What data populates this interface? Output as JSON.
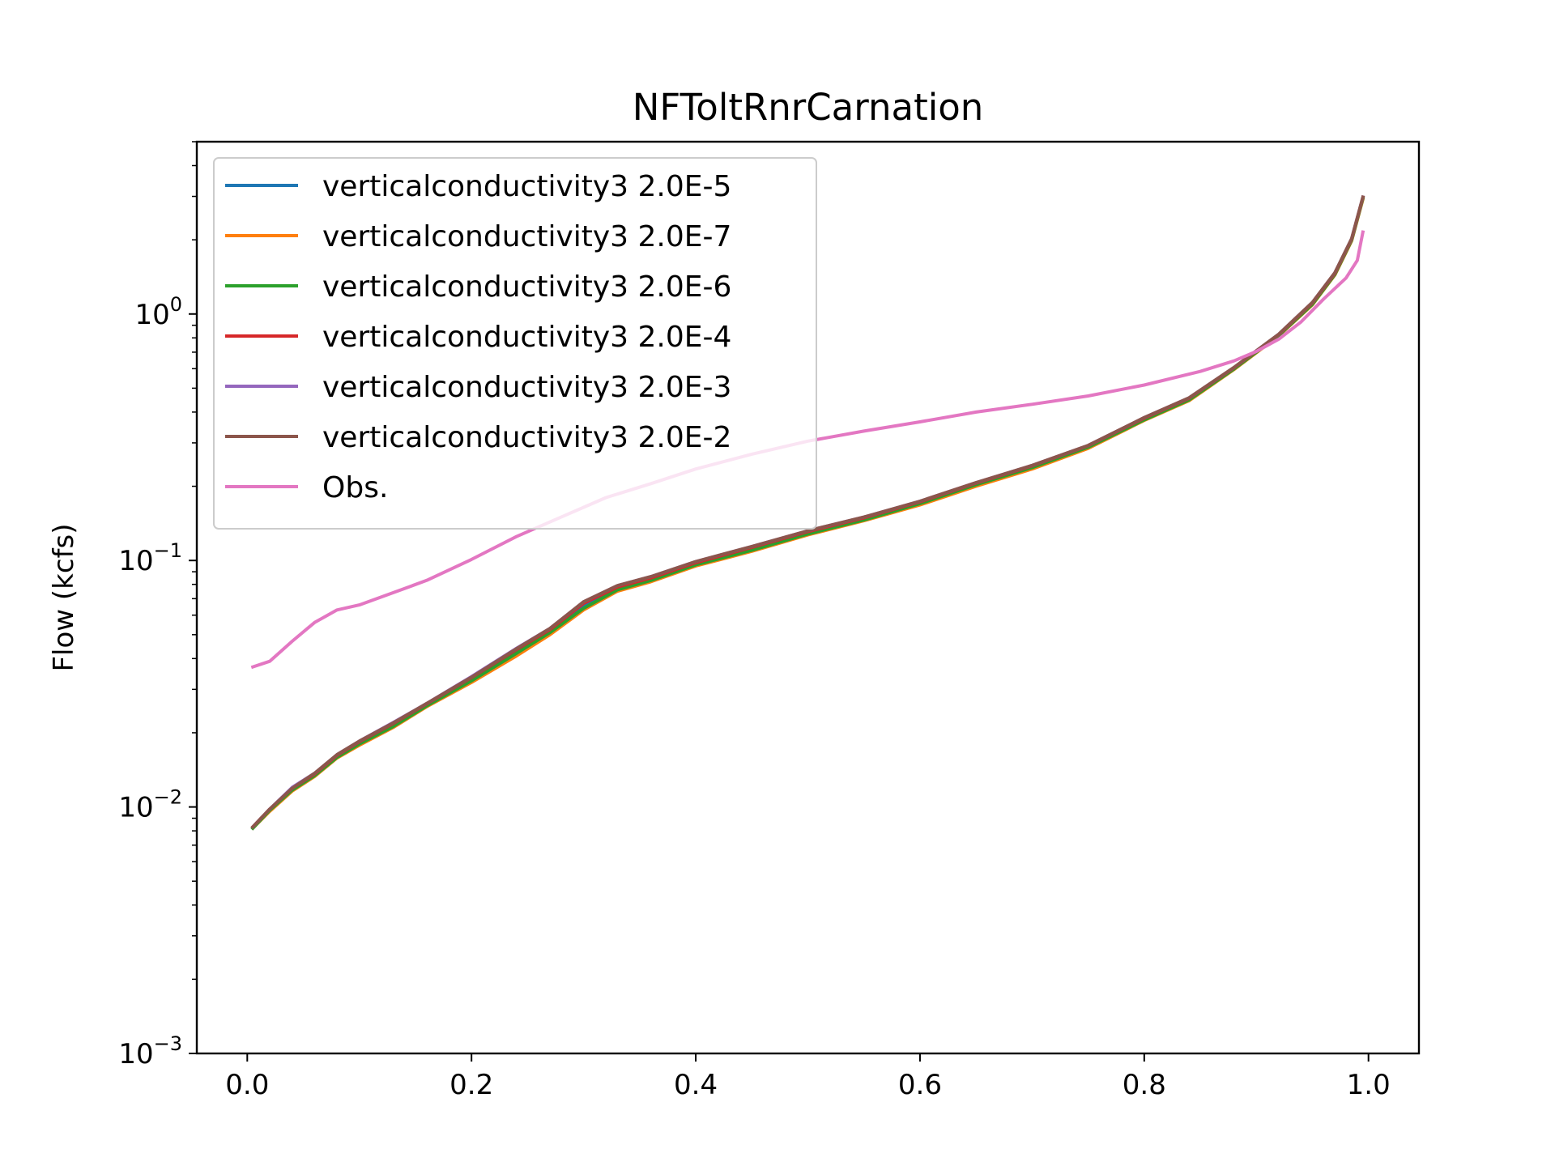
{
  "chart_data": {
    "type": "line",
    "title": "NFToltRnrCarnation",
    "xlabel": "",
    "ylabel": "Flow (kcfs)",
    "yscale": "log",
    "xlim": [
      -0.045,
      1.045
    ],
    "ylim": [
      0.001,
      5.0
    ],
    "xticks": [
      {
        "value": 0.0,
        "label": "0.0"
      },
      {
        "value": 0.2,
        "label": "0.2"
      },
      {
        "value": 0.4,
        "label": "0.4"
      },
      {
        "value": 0.6,
        "label": "0.6"
      },
      {
        "value": 0.8,
        "label": "0.8"
      },
      {
        "value": 1.0,
        "label": "1.0"
      }
    ],
    "yticks": [
      {
        "value": 0.001,
        "base": "10",
        "exp": "−3"
      },
      {
        "value": 0.01,
        "base": "10",
        "exp": "−2"
      },
      {
        "value": 0.1,
        "base": "10",
        "exp": "−1"
      },
      {
        "value": 1.0,
        "base": "10",
        "exp": "0"
      }
    ],
    "grid": false,
    "legend_position": "top-left",
    "series": [
      {
        "name": "verticalconductivity3 2.0E-5",
        "color": "#1f77b4",
        "x": [
          0.005,
          0.02,
          0.04,
          0.06,
          0.08,
          0.1,
          0.13,
          0.16,
          0.2,
          0.24,
          0.27,
          0.3,
          0.33,
          0.36,
          0.4,
          0.45,
          0.5,
          0.55,
          0.6,
          0.65,
          0.7,
          0.75,
          0.8,
          0.84,
          0.88,
          0.92,
          0.95,
          0.97,
          0.985,
          0.995
        ],
        "y": [
          0.0082,
          0.0097,
          0.0118,
          0.0135,
          0.016,
          0.0182,
          0.0215,
          0.026,
          0.033,
          0.043,
          0.052,
          0.066,
          0.077,
          0.084,
          0.097,
          0.112,
          0.13,
          0.148,
          0.172,
          0.205,
          0.24,
          0.29,
          0.375,
          0.45,
          0.6,
          0.82,
          1.1,
          1.45,
          2.0,
          2.95
        ]
      },
      {
        "name": "verticalconductivity3 2.0E-7",
        "color": "#ff7f0e",
        "x": [
          0.005,
          0.02,
          0.04,
          0.06,
          0.08,
          0.1,
          0.13,
          0.16,
          0.2,
          0.24,
          0.27,
          0.3,
          0.33,
          0.36,
          0.4,
          0.45,
          0.5,
          0.55,
          0.6,
          0.65,
          0.7,
          0.75,
          0.8,
          0.84,
          0.88,
          0.92,
          0.95,
          0.97,
          0.985,
          0.995
        ],
        "y": [
          0.0082,
          0.0096,
          0.0116,
          0.0133,
          0.0158,
          0.0178,
          0.021,
          0.0255,
          0.032,
          0.041,
          0.05,
          0.063,
          0.075,
          0.082,
          0.095,
          0.109,
          0.127,
          0.145,
          0.168,
          0.2,
          0.235,
          0.285,
          0.37,
          0.445,
          0.595,
          0.815,
          1.09,
          1.44,
          1.98,
          2.92
        ]
      },
      {
        "name": "verticalconductivity3 2.0E-6",
        "color": "#2ca02c",
        "x": [
          0.005,
          0.02,
          0.04,
          0.06,
          0.08,
          0.1,
          0.13,
          0.16,
          0.2,
          0.24,
          0.27,
          0.3,
          0.33,
          0.36,
          0.4,
          0.45,
          0.5,
          0.55,
          0.6,
          0.65,
          0.7,
          0.75,
          0.8,
          0.84,
          0.88,
          0.92,
          0.95,
          0.97,
          0.985,
          0.995
        ],
        "y": [
          0.0082,
          0.0097,
          0.0117,
          0.0134,
          0.0159,
          0.018,
          0.0212,
          0.0257,
          0.0325,
          0.042,
          0.051,
          0.064,
          0.076,
          0.083,
          0.096,
          0.11,
          0.128,
          0.146,
          0.17,
          0.203,
          0.238,
          0.288,
          0.372,
          0.448,
          0.598,
          0.818,
          1.095,
          1.445,
          1.99,
          2.94
        ]
      },
      {
        "name": "verticalconductivity3 2.0E-4",
        "color": "#d62728",
        "x": [
          0.005,
          0.02,
          0.04,
          0.06,
          0.08,
          0.1,
          0.13,
          0.16,
          0.2,
          0.24,
          0.27,
          0.3,
          0.33,
          0.36,
          0.4,
          0.45,
          0.5,
          0.55,
          0.6,
          0.65,
          0.7,
          0.75,
          0.8,
          0.84,
          0.88,
          0.92,
          0.95,
          0.97,
          0.985,
          0.995
        ],
        "y": [
          0.0083,
          0.0098,
          0.0119,
          0.0136,
          0.0162,
          0.0184,
          0.0218,
          0.0262,
          0.0335,
          0.0435,
          0.0525,
          0.067,
          0.078,
          0.085,
          0.098,
          0.113,
          0.131,
          0.149,
          0.173,
          0.206,
          0.242,
          0.292,
          0.378,
          0.455,
          0.605,
          0.825,
          1.11,
          1.46,
          2.01,
          2.97
        ]
      },
      {
        "name": "verticalconductivity3 2.0E-3",
        "color": "#9467bd",
        "x": [
          0.005,
          0.02,
          0.04,
          0.06,
          0.08,
          0.1,
          0.13,
          0.16,
          0.2,
          0.24,
          0.27,
          0.3,
          0.33,
          0.36,
          0.4,
          0.45,
          0.5,
          0.55,
          0.6,
          0.65,
          0.7,
          0.75,
          0.8,
          0.84,
          0.88,
          0.92,
          0.95,
          0.97,
          0.985,
          0.995
        ],
        "y": [
          0.0083,
          0.0098,
          0.012,
          0.0137,
          0.0163,
          0.0185,
          0.022,
          0.0263,
          0.0338,
          0.044,
          0.053,
          0.068,
          0.079,
          0.086,
          0.099,
          0.114,
          0.132,
          0.15,
          0.174,
          0.207,
          0.243,
          0.293,
          0.38,
          0.457,
          0.607,
          0.828,
          1.115,
          1.47,
          2.02,
          2.98
        ]
      },
      {
        "name": "verticalconductivity3 2.0E-2",
        "color": "#8c564b",
        "x": [
          0.005,
          0.02,
          0.04,
          0.06,
          0.08,
          0.1,
          0.13,
          0.16,
          0.2,
          0.24,
          0.27,
          0.3,
          0.33,
          0.36,
          0.4,
          0.45,
          0.5,
          0.55,
          0.6,
          0.65,
          0.7,
          0.75,
          0.8,
          0.84,
          0.88,
          0.92,
          0.95,
          0.97,
          0.985,
          0.995
        ],
        "y": [
          0.0083,
          0.0098,
          0.0119,
          0.0137,
          0.0163,
          0.0185,
          0.0219,
          0.0263,
          0.0336,
          0.0438,
          0.053,
          0.068,
          0.079,
          0.086,
          0.099,
          0.114,
          0.132,
          0.15,
          0.174,
          0.207,
          0.243,
          0.293,
          0.38,
          0.457,
          0.607,
          0.828,
          1.115,
          1.47,
          2.02,
          2.98
        ]
      },
      {
        "name": "Obs.",
        "color": "#e377c2",
        "x": [
          0.005,
          0.02,
          0.04,
          0.06,
          0.08,
          0.1,
          0.13,
          0.16,
          0.2,
          0.24,
          0.28,
          0.32,
          0.36,
          0.4,
          0.45,
          0.5,
          0.55,
          0.6,
          0.65,
          0.7,
          0.75,
          0.8,
          0.85,
          0.88,
          0.9,
          0.92,
          0.94,
          0.96,
          0.98,
          0.99,
          0.995
        ],
        "y": [
          0.037,
          0.039,
          0.047,
          0.056,
          0.063,
          0.066,
          0.074,
          0.083,
          0.101,
          0.125,
          0.15,
          0.18,
          0.205,
          0.235,
          0.27,
          0.305,
          0.335,
          0.365,
          0.4,
          0.43,
          0.465,
          0.515,
          0.585,
          0.645,
          0.705,
          0.79,
          0.93,
          1.15,
          1.4,
          1.65,
          2.15
        ]
      }
    ]
  }
}
